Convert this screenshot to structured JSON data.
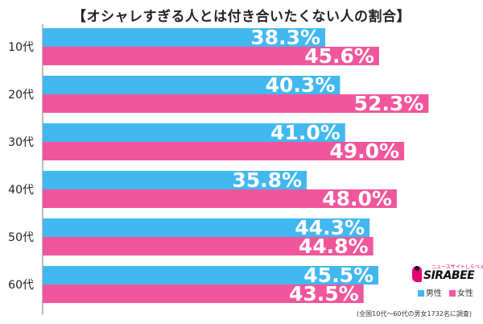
{
  "colors": {
    "male": "#42b8f0",
    "female": "#f0569b",
    "axis": "#7a7a7a"
  },
  "chart_data": {
    "type": "bar",
    "orientation": "horizontal",
    "title": "【オシャレすぎる人とは付き合いたくない人の割合】",
    "categories": [
      "10代",
      "20代",
      "30代",
      "40代",
      "50代",
      "60代"
    ],
    "series": [
      {
        "name": "男性",
        "values": [
          38.3,
          40.3,
          41.0,
          35.8,
          44.3,
          45.5
        ],
        "labels": [
          "38.3%",
          "40.3%",
          "41.0%",
          "35.8%",
          "44.3%",
          "45.5%"
        ]
      },
      {
        "name": "女性",
        "values": [
          45.6,
          52.3,
          49.0,
          48.0,
          44.8,
          43.5
        ],
        "labels": [
          "45.6%",
          "52.3%",
          "49.0%",
          "48.0%",
          "44.8%",
          "43.5%"
        ]
      }
    ],
    "xlim": [
      0,
      57.5
    ],
    "legend_position": "bottom-right",
    "grid": false
  },
  "legend": {
    "male_label": "男性",
    "female_label": "女性"
  },
  "footnote": "(全国10代～60代の男女1732名に調査)",
  "logo": {
    "brand": "SIRABEE",
    "kana": "ニュースサイトしらべぇ"
  }
}
